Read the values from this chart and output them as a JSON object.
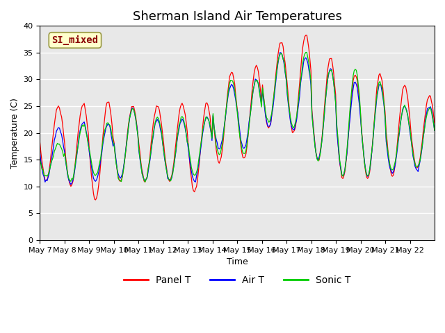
{
  "title": "Sherman Island Air Temperatures",
  "xlabel": "Time",
  "ylabel": "Temperature (C)",
  "annotation": "SI_mixed",
  "annotation_color": "#8B0000",
  "annotation_bg": "#FFFFCC",
  "ylim": [
    0,
    40
  ],
  "yticks": [
    0,
    5,
    10,
    15,
    20,
    25,
    30,
    35,
    40
  ],
  "legend": [
    "Panel T",
    "Air T",
    "Sonic T"
  ],
  "line_colors": [
    "#FF0000",
    "#0000FF",
    "#00CC00"
  ],
  "bg_color": "#E8E8E8",
  "n_days": 16,
  "x_tick_labels": [
    "May 7",
    "May 8",
    "May 9",
    "May 10",
    "May 11",
    "May 12",
    "May 13",
    "May 14",
    "May 15",
    "May 16",
    "May 17",
    "May 18",
    "May 19",
    "May 20",
    "May 21",
    "May 22"
  ],
  "daily_max_panel": [
    25,
    25.5,
    26,
    25,
    25,
    25.5,
    25.5,
    31.5,
    32.5,
    37,
    38.5,
    34,
    31,
    31,
    29,
    27
  ],
  "daily_min_panel": [
    11,
    10,
    7.5,
    11,
    11,
    11,
    9,
    14.5,
    15,
    21,
    20,
    15,
    11.5,
    11.5,
    12,
    13.5
  ],
  "daily_max_air": [
    21,
    22,
    21.5,
    24.5,
    22.5,
    22.5,
    23,
    29,
    30,
    35,
    34,
    32,
    29.5,
    29,
    25,
    25
  ],
  "daily_min_air": [
    11,
    10.5,
    11,
    11.5,
    11,
    11,
    11,
    17,
    17,
    21,
    20.5,
    15,
    12,
    12,
    12.5,
    13
  ],
  "daily_max_sonic": [
    18,
    21.5,
    22,
    24.5,
    23,
    23,
    23,
    30,
    30,
    35,
    35,
    32,
    32,
    29.5,
    25,
    24.5
  ],
  "daily_min_sonic": [
    12,
    11,
    12,
    11,
    11,
    11,
    12,
    16,
    16,
    22,
    21,
    15,
    12,
    12,
    13,
    13.5
  ]
}
